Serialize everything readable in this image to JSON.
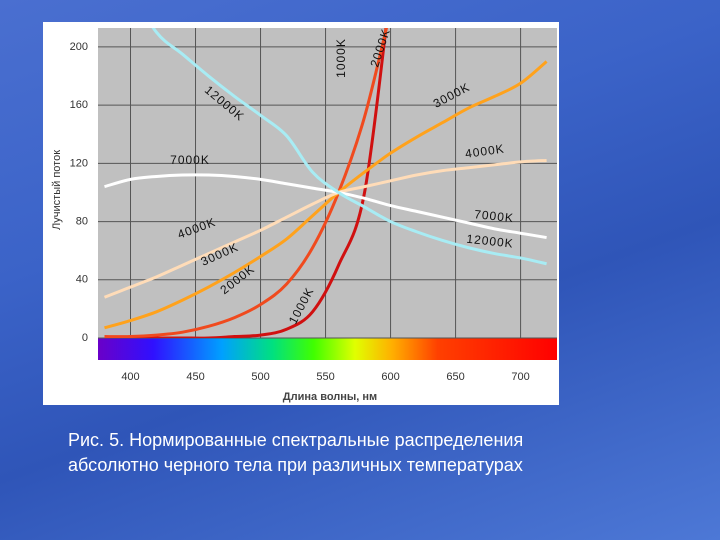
{
  "chart_data": {
    "type": "line",
    "ylabel": "Лучистый поток",
    "xlabel": "Длина волны, нм",
    "x": [
      380,
      400,
      420,
      440,
      460,
      480,
      500,
      520,
      540,
      560,
      580,
      600,
      620,
      640,
      660,
      680,
      700,
      720
    ],
    "xlim": [
      375,
      728
    ],
    "ylim": [
      0,
      213
    ],
    "xticks": [
      400,
      450,
      500,
      550,
      600,
      650,
      700
    ],
    "yticks": [
      0,
      40,
      80,
      120,
      160,
      200
    ],
    "grid": true,
    "series": [
      {
        "name": "1000K",
        "color": "#d01010",
        "values": [
          0,
          0,
          0,
          0,
          0,
          1,
          2,
          6,
          18,
          50,
          100,
          240,
          null,
          null,
          null,
          null,
          null,
          null
        ]
      },
      {
        "name": "2000K",
        "color": "#f04a1e",
        "values": [
          1,
          1,
          2,
          4,
          8,
          14,
          23,
          37,
          62,
          100,
          152,
          225,
          null,
          null,
          null,
          null,
          null,
          null
        ]
      },
      {
        "name": "3000K",
        "color": "#ffa21c",
        "values": [
          7,
          12,
          18,
          26,
          35,
          45,
          56,
          68,
          84,
          100,
          114,
          127,
          138,
          148,
          158,
          166,
          175,
          190
        ]
      },
      {
        "name": "4000K",
        "color": "#ffdcb8",
        "values": [
          28,
          35,
          42,
          50,
          58,
          66,
          74,
          83,
          92,
          100,
          104,
          108,
          112,
          115,
          117,
          119,
          121,
          122
        ]
      },
      {
        "name": "7000K",
        "color": "#ffffff",
        "values": [
          104,
          109,
          111,
          112,
          112,
          111,
          109,
          106,
          103,
          100,
          96,
          91,
          87,
          83,
          79,
          75,
          72,
          69
        ]
      },
      {
        "name": "12000K",
        "color": "#a8ecf4",
        "values": [
          null,
          240,
          210,
          195,
          180,
          166,
          153,
          139,
          114,
          100,
          90,
          80,
          73,
          67,
          62,
          58,
          55,
          51
        ]
      }
    ]
  },
  "caption": [
    "Рис. 5. Нормированные спектральные распределения",
    "абсолютно черного тела при различных температурах"
  ]
}
